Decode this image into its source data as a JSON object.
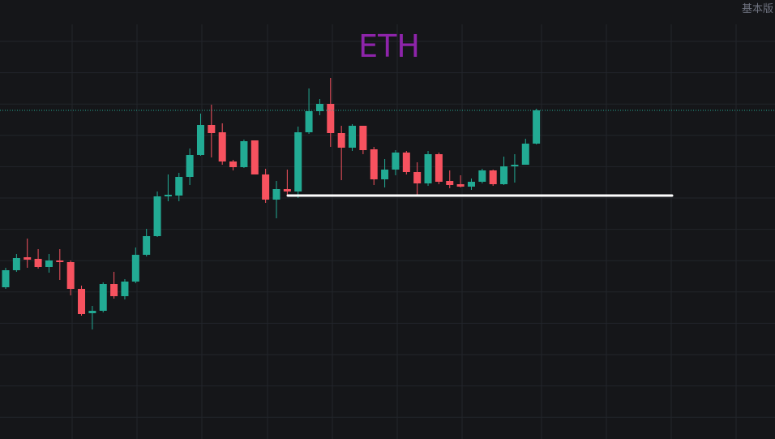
{
  "chart_data": {
    "type": "candlestick",
    "title": "ETH",
    "edition_label": "基本版",
    "up_color": "#22ab94",
    "down_color": "#f7525f",
    "grid": true,
    "ylim": [
      0,
      541
    ],
    "open": [
      187,
      208,
      224,
      222,
      212,
      220,
      218,
      185,
      155,
      158,
      191,
      176,
      194,
      227,
      250,
      299,
      300,
      323,
      350,
      387,
      378,
      342,
      335,
      368,
      326,
      295,
      308,
      305,
      378,
      404,
      413,
      377,
      359,
      386,
      357,
      320,
      332,
      353,
      329,
      315,
      351,
      318,
      314,
      311,
      317,
      331,
      314,
      336,
      338,
      364
    ],
    "high": [
      211,
      228,
      247,
      234,
      228,
      234,
      220,
      189,
      164,
      193,
      206,
      197,
      236,
      259,
      305,
      326,
      328,
      358,
      401,
      412,
      389,
      344,
      369,
      368,
      333,
      318,
      332,
      385,
      432,
      419,
      445,
      386,
      388,
      386,
      360,
      345,
      356,
      355,
      341,
      355,
      353,
      331,
      325,
      321,
      333,
      332,
      348,
      351,
      370,
      407
    ],
    "low": [
      185,
      206,
      211,
      210,
      205,
      196,
      177,
      152,
      135,
      156,
      173,
      172,
      192,
      225,
      249,
      293,
      293,
      313,
      349,
      347,
      338,
      331,
      334,
      326,
      291,
      272,
      301,
      297,
      376,
      399,
      360,
      319,
      355,
      351,
      313,
      310,
      325,
      326,
      301,
      312,
      314,
      309,
      310,
      307,
      315,
      312,
      313,
      316,
      338,
      363
    ],
    "close": [
      208,
      223,
      221,
      212,
      220,
      218,
      185,
      154,
      158,
      191,
      176,
      194,
      227,
      250,
      299,
      301,
      323,
      350,
      387,
      377,
      342,
      335,
      367,
      326,
      295,
      308,
      305,
      378,
      404,
      413,
      377,
      359,
      386,
      356,
      320,
      332,
      353,
      329,
      315,
      351,
      317,
      313,
      311,
      317,
      331,
      314,
      336,
      338,
      364,
      405
    ],
    "support_line": {
      "value": 300,
      "color": "#ffffff"
    },
    "last_price_line_color": "#22ab94"
  }
}
